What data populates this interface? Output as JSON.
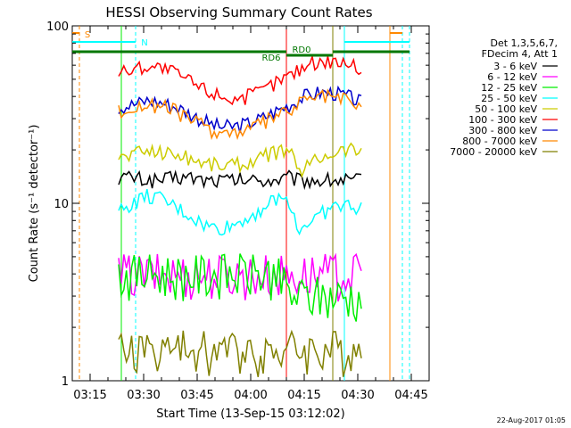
{
  "chart_data": {
    "type": "line",
    "title": "HESSI Observing Summary Count Rates",
    "xlabel": "Start Time (13-Sep-15 03:12:02)",
    "ylabel": "Count Rate (s⁻¹ detector⁻¹)",
    "ylim": [
      1,
      100
    ],
    "yscale": "log",
    "xlim": [
      "03:10",
      "04:50"
    ],
    "x_ticks": [
      "03:15",
      "03:30",
      "03:45",
      "04:00",
      "04:15",
      "04:30",
      "04:45"
    ],
    "y_ticks": [
      "1",
      "10",
      "100"
    ],
    "grid": false,
    "legend_placement": "right",
    "legend_header": [
      "Det 1,3,5,6,7,",
      "FDecim 4, Att 1"
    ],
    "x": [
      "03:23",
      "03:27",
      "03:31",
      "03:35",
      "03:39",
      "03:43",
      "03:47",
      "03:51",
      "03:55",
      "03:59",
      "04:03",
      "04:07",
      "04:11",
      "04:13",
      "04:15",
      "04:19",
      "04:23",
      "04:27",
      "04:31"
    ],
    "series": [
      {
        "name": "3 - 6 keV",
        "color": "#000000",
        "values": [
          14,
          14,
          13.5,
          13.5,
          14,
          14,
          13.5,
          13.5,
          13.5,
          13.5,
          13.5,
          13.5,
          14,
          13.5,
          13.5,
          13.5,
          13.5,
          13.5,
          13.5
        ]
      },
      {
        "name": "6 - 12 keV",
        "color": "#ff00ff",
        "values": [
          4,
          4,
          4,
          4,
          4,
          4,
          4,
          4,
          4,
          4,
          4,
          4,
          4,
          4,
          4,
          4,
          4,
          4,
          4
        ]
      },
      {
        "name": "12 - 25 keV",
        "color": "#00ee00",
        "values": [
          4,
          4,
          4,
          4,
          4,
          4,
          4,
          4,
          4,
          4,
          4,
          4,
          3,
          3,
          3,
          3,
          3,
          3,
          3
        ]
      },
      {
        "name": "25 - 50 keV",
        "color": "#00ffff",
        "values": [
          9,
          10,
          11,
          10.5,
          9.5,
          8.5,
          7.5,
          7.2,
          7.5,
          8.3,
          9.3,
          10.5,
          10.5,
          7,
          7.5,
          8.5,
          9.5,
          9.8,
          9.3
        ]
      },
      {
        "name": "50 - 100 keV",
        "color": "#cccc00",
        "values": [
          18,
          19,
          20,
          19.5,
          19,
          18,
          17,
          16.5,
          16.5,
          17,
          18,
          19.5,
          20,
          15,
          16,
          18,
          19.5,
          20.5,
          20
        ]
      },
      {
        "name": "100 - 300 keV",
        "color": "#ff0000",
        "values": [
          55,
          57,
          60,
          58,
          54,
          49,
          44,
          41,
          39,
          40,
          43,
          48,
          53,
          56,
          60,
          63,
          64,
          62,
          57
        ]
      },
      {
        "name": "300 - 800 keV",
        "color": "#0000cc",
        "values": [
          35,
          36,
          38,
          37,
          35,
          32,
          29,
          27,
          27,
          28,
          30,
          33,
          36,
          38,
          40,
          42,
          42,
          40,
          37
        ]
      },
      {
        "name": "800 - 7000 keV",
        "color": "#ff8800",
        "values": [
          33,
          34,
          36,
          35,
          33,
          30,
          27,
          25,
          25,
          26,
          28,
          31,
          33,
          36,
          38,
          40,
          40,
          38,
          34
        ]
      },
      {
        "name": "7000 - 20000 keV",
        "color": "#808000",
        "values": [
          1.5,
          1.5,
          1.5,
          1.5,
          1.5,
          1.5,
          1.5,
          1.5,
          1.5,
          1.5,
          1.5,
          1.5,
          1.5,
          1.5,
          1.5,
          1.5,
          1.5,
          1.5,
          1.5
        ]
      }
    ],
    "attenuator_bars": [
      {
        "label": "S",
        "color": "#ff8800"
      },
      {
        "label": "N",
        "color": "#00ffff"
      },
      {
        "label": "RD6",
        "color": "#007700"
      },
      {
        "label": "RD0",
        "color": "#007700"
      }
    ]
  },
  "footer_date": "22-Aug-2017 01:05"
}
